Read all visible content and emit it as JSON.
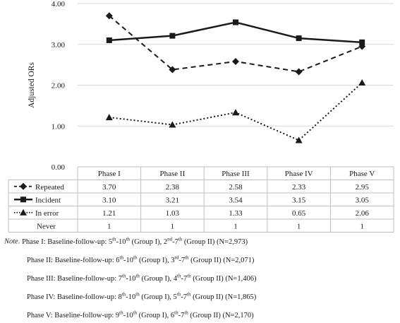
{
  "chart_data": {
    "type": "line",
    "ylabel": "Adjusted ORs",
    "ylim": [
      0,
      4
    ],
    "yticks": [
      "0.00",
      "1.00",
      "2.00",
      "3.00",
      "4.00"
    ],
    "categories": [
      "Phase I",
      "Phase II",
      "Phase III",
      "Phase IV",
      "Phase V"
    ],
    "grid": "horizontal gridlines",
    "legend": "data table below plot",
    "series": [
      {
        "name": "Repeated",
        "values": [
          3.7,
          2.38,
          2.58,
          2.33,
          2.95
        ],
        "labels": [
          "3.70",
          "2.38",
          "2.58",
          "2.33",
          "2.95"
        ],
        "line": "dashed",
        "marker": "diamond"
      },
      {
        "name": "Incident",
        "values": [
          3.1,
          3.21,
          3.54,
          3.15,
          3.05
        ],
        "labels": [
          "3.10",
          "3.21",
          "3.54",
          "3.15",
          "3.05"
        ],
        "line": "solid",
        "marker": "square"
      },
      {
        "name": "In error",
        "values": [
          1.21,
          1.03,
          1.33,
          0.65,
          2.06
        ],
        "labels": [
          "1.21",
          "1.03",
          "1.33",
          "0.65",
          "2.06"
        ],
        "line": "dotted",
        "marker": "triangle"
      },
      {
        "name": "Never",
        "values": [
          1,
          1,
          1,
          1,
          1
        ],
        "labels": [
          "1",
          "1",
          "1",
          "1",
          "1"
        ],
        "line": "none",
        "marker": "none"
      }
    ]
  },
  "note": {
    "lead": "Note.",
    "lines": [
      [
        [
          "Phase I: Baseline-follow-up: 5"
        ],
        [
          "th"
        ],
        [
          "-10"
        ],
        [
          "th"
        ],
        [
          " (Group I), 2"
        ],
        [
          "nd"
        ],
        [
          "-7"
        ],
        [
          "th"
        ],
        [
          " (Group II) (N=2,973)"
        ]
      ],
      [
        [
          "Phase II: Baseline-follow-up: 6"
        ],
        [
          "th"
        ],
        [
          "-10"
        ],
        [
          "th"
        ],
        [
          " (Group I), 3"
        ],
        [
          "rd"
        ],
        [
          "-7"
        ],
        [
          "th"
        ],
        [
          " (Group II) (N=2,071)"
        ]
      ],
      [
        [
          "Phase III: Baseline-follow-up: 7"
        ],
        [
          "th"
        ],
        [
          "-10"
        ],
        [
          "th"
        ],
        [
          " (Group I), 4"
        ],
        [
          "th"
        ],
        [
          "-7"
        ],
        [
          "th"
        ],
        [
          " (Group II) (N=1,406)"
        ]
      ],
      [
        [
          "Phase IV: Baseline-follow-up: 8"
        ],
        [
          "th"
        ],
        [
          "-10"
        ],
        [
          "th"
        ],
        [
          " (Group I), 5"
        ],
        [
          "th"
        ],
        [
          "-7"
        ],
        [
          "th"
        ],
        [
          " (Group II) (N=1,865)"
        ]
      ],
      [
        [
          "Phase V: Baseline-follow-up: 9"
        ],
        [
          "th"
        ],
        [
          "-10"
        ],
        [
          "th"
        ],
        [
          " (Group I), 6"
        ],
        [
          "th"
        ],
        [
          "-7"
        ],
        [
          "th"
        ],
        [
          " (Group II) (N=2,170)"
        ]
      ]
    ]
  },
  "colors": {
    "ink": "#1a1a1a",
    "grid": "#d9d9d9",
    "table": "#bfbfbf"
  }
}
